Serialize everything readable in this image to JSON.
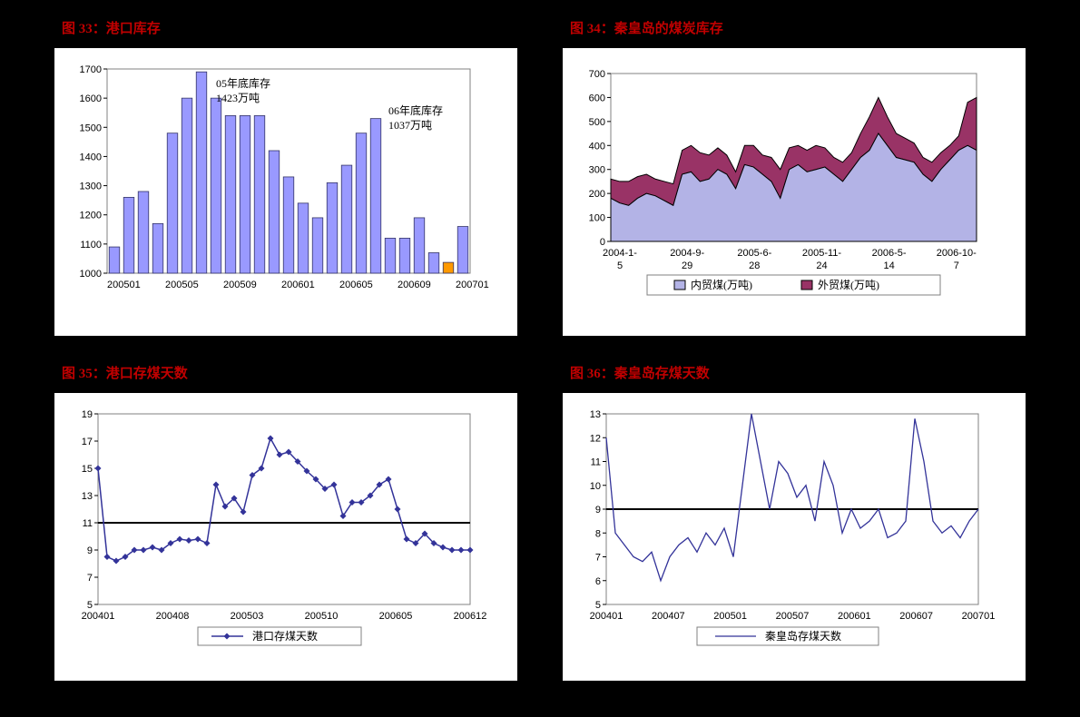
{
  "charts": {
    "c33": {
      "title": "图 33：港口库存",
      "type": "bar",
      "ylim": [
        1000,
        1700
      ],
      "ytick_step": 100,
      "bar_color": "#9999ff",
      "bar_border": "#333366",
      "highlight_color": "#ff9900",
      "plot_border": "#808080",
      "x_labels": [
        "200501",
        "200505",
        "200509",
        "200601",
        "200605",
        "200609",
        "200701"
      ],
      "values": [
        1090,
        1260,
        1280,
        1170,
        1480,
        1600,
        1690,
        1600,
        1540,
        1540,
        1540,
        1420,
        1330,
        1240,
        1190,
        1310,
        1370,
        1480,
        1530,
        1120,
        1120,
        1190,
        1070,
        1037,
        1160
      ],
      "highlight_index": 23,
      "annotations": [
        {
          "text1": "05年底库存",
          "text2": "1423万吨"
        },
        {
          "text1": "06年底库存",
          "text2": "1037万吨"
        }
      ]
    },
    "c34": {
      "title": "图 34：秦皇岛的煤炭库存",
      "type": "area",
      "ylim": [
        0,
        700
      ],
      "ytick_step": 100,
      "colors": {
        "domestic": "#b3b3e6",
        "foreign": "#993366",
        "border": "#000000"
      },
      "plot_border": "#808080",
      "x_labels": [
        "2004-1-5",
        "2004-9-29",
        "2005-6-28",
        "2005-11-24",
        "2006-5-14",
        "2006-10-7"
      ],
      "domestic": [
        180,
        160,
        150,
        180,
        200,
        190,
        170,
        150,
        280,
        290,
        250,
        260,
        300,
        280,
        220,
        320,
        310,
        280,
        250,
        180,
        300,
        320,
        290,
        300,
        310,
        280,
        250,
        300,
        350,
        380,
        450,
        400,
        350,
        340,
        330,
        280,
        250,
        300,
        340,
        380,
        400,
        380
      ],
      "foreign": [
        80,
        90,
        100,
        90,
        80,
        70,
        80,
        90,
        100,
        110,
        120,
        100,
        90,
        80,
        70,
        80,
        90,
        80,
        100,
        120,
        90,
        80,
        90,
        100,
        80,
        70,
        80,
        70,
        100,
        140,
        150,
        120,
        100,
        90,
        80,
        70,
        80,
        70,
        60,
        60,
        180,
        220
      ],
      "legend": {
        "domestic": "内贸煤(万吨)",
        "foreign": "外贸煤(万吨)"
      }
    },
    "c35": {
      "title": "图 35：港口存煤天数",
      "type": "line",
      "ylim": [
        5,
        19
      ],
      "ytick_step": 2,
      "line_color": "#333399",
      "marker_color": "#333399",
      "ref_line": 11,
      "plot_border": "#808080",
      "x_labels": [
        "200401",
        "200408",
        "200503",
        "200510",
        "200605",
        "200612"
      ],
      "values": [
        15,
        8.5,
        8.2,
        8.5,
        9,
        9,
        9.2,
        9,
        9.5,
        9.8,
        9.7,
        9.8,
        9.5,
        13.8,
        12.2,
        12.8,
        11.8,
        14.5,
        15,
        17.2,
        16,
        16.2,
        15.5,
        14.8,
        14.2,
        13.5,
        13.8,
        11.5,
        12.5,
        12.5,
        13,
        13.8,
        14.2,
        12,
        9.8,
        9.5,
        10.2,
        9.5,
        9.2,
        9,
        9,
        9
      ],
      "legend_label": "港口存煤天数"
    },
    "c36": {
      "title": "图 36：秦皇岛存煤天数",
      "type": "line",
      "ylim": [
        5,
        13
      ],
      "ytick_step": 1,
      "line_color": "#333399",
      "ref_line": 9,
      "plot_border": "#808080",
      "x_labels": [
        "200401",
        "200407",
        "200501",
        "200507",
        "200601",
        "200607",
        "200701"
      ],
      "values": [
        12,
        8,
        7.5,
        7,
        6.8,
        7.2,
        6,
        7,
        7.5,
        7.8,
        7.2,
        8,
        7.5,
        8.2,
        7,
        10,
        13,
        11,
        9,
        11,
        10.5,
        9.5,
        10,
        8.5,
        11,
        10,
        8,
        9,
        8.2,
        8.5,
        9,
        7.8,
        8,
        8.5,
        12.8,
        11,
        8.5,
        8,
        8.3,
        7.8,
        8.5,
        9
      ],
      "legend_label": "秦皇岛存煤天数"
    }
  }
}
